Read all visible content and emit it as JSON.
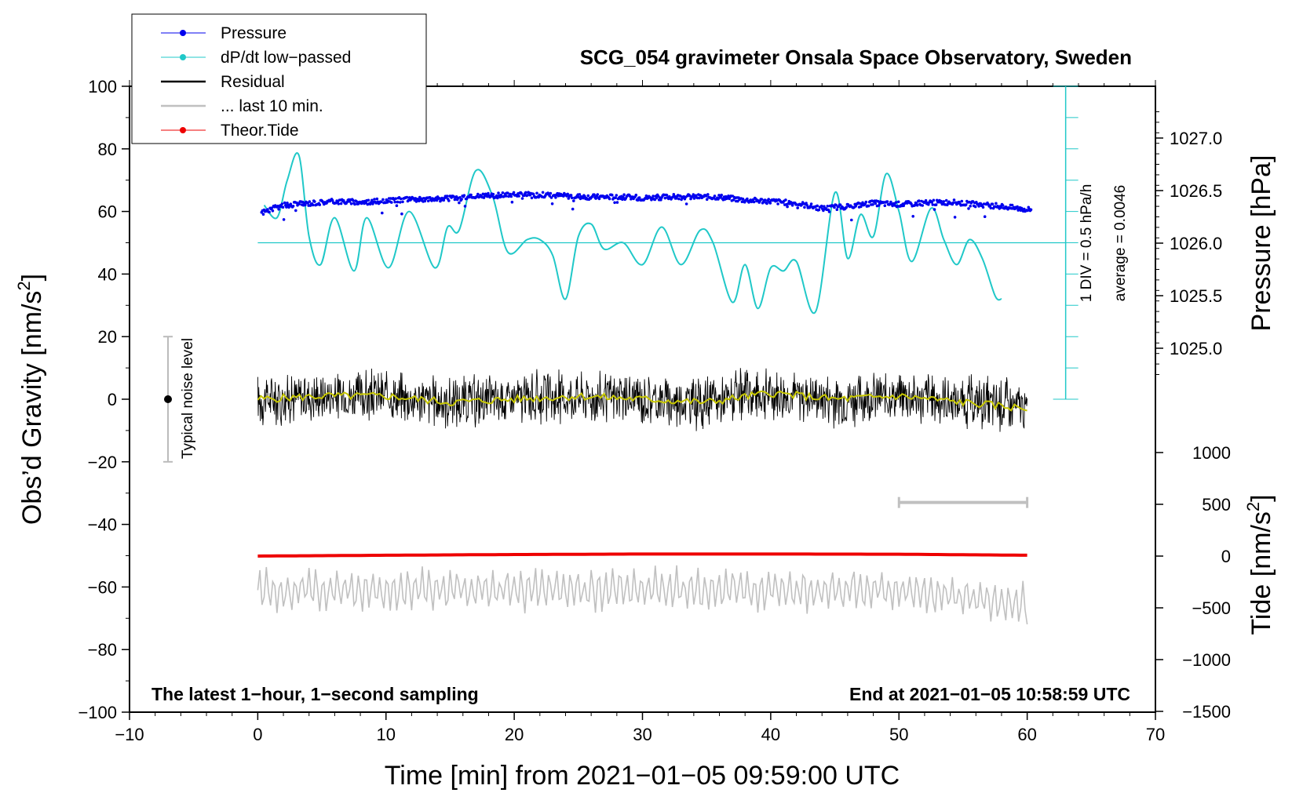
{
  "chart_data": {
    "type": "line",
    "title": "SCG_054 gravimeter Onsala Space Observatory, Sweden",
    "xlabel": "Time [min] from 2021−01−05 09:59:00 UTC",
    "ylabel_left": "Obs’d Gravity [nm/s",
    "ylabel_left_sup": "2",
    "ylabel_left_close": "]",
    "ylabel_right_top": "Pressure [hPa]",
    "ylabel_right_bottom": "Tide [nm/s",
    "ylabel_right_bottom_sup": "2",
    "ylabel_right_bottom_close": "]",
    "xlim": [
      -10,
      70
    ],
    "ylim": [
      -100,
      100
    ],
    "x_ticks": [
      "−10",
      "0",
      "10",
      "20",
      "30",
      "40",
      "50",
      "60",
      "70"
    ],
    "y_ticks": [
      "100",
      "80",
      "60",
      "40",
      "20",
      "0",
      "−20",
      "−40",
      "−60",
      "−80",
      "−100"
    ],
    "pressure_ticks": [
      "1027.0",
      "1026.5",
      "1026.0",
      "1025.5",
      "1025.0"
    ],
    "pressure_tick_values": [
      1027.0,
      1026.5,
      1026.0,
      1025.5,
      1025.0
    ],
    "tide_ticks": [
      "1000",
      "500",
      "0",
      "−500",
      "−1000",
      "−1500"
    ],
    "tide_tick_values": [
      1000,
      500,
      0,
      -500,
      -1000,
      -1500
    ],
    "legend": [
      {
        "label": "Pressure",
        "color": "#0000ee",
        "marker": true
      },
      {
        "label": "dP/dt low−passed",
        "color": "#20c8c8",
        "marker": true
      },
      {
        "label": "Residual",
        "color": "#000000",
        "marker": false
      },
      {
        "label": "... last 10 min.",
        "color": "#c0c0c0",
        "marker": false
      },
      {
        "label": "Theor.Tide",
        "color": "#ee0000",
        "marker": true
      }
    ],
    "note_left": "The latest 1−hour, 1−second sampling",
    "note_right": "End at 2021−01−05 10:58:59 UTC",
    "noise_label": "Typical noise level",
    "noise_bar": {
      "x": -7,
      "center": 0,
      "half_range": 20
    },
    "dpdt_scale_label": "1 DIV = 0.5 hPa/h",
    "dpdt_average_label": "average = 0.0046",
    "dpdt_scale_axis": {
      "x": 63,
      "y_range": [
        0,
        100
      ],
      "baseline": 50
    },
    "last10_range": [
      50,
      60
    ],
    "last10_level": -33,
    "series": [
      {
        "name": "Pressure",
        "unit": "hPa",
        "x": [
          0,
          2,
          4,
          6,
          8,
          10,
          12,
          14,
          16,
          18,
          20,
          22,
          24,
          26,
          28,
          30,
          32,
          34,
          36,
          38,
          40,
          42,
          44,
          46,
          48,
          50,
          52,
          54,
          56,
          58,
          60
        ],
        "values": [
          1026.28,
          1026.36,
          1026.38,
          1026.4,
          1026.39,
          1026.4,
          1026.42,
          1026.42,
          1026.43,
          1026.45,
          1026.46,
          1026.46,
          1026.45,
          1026.44,
          1026.44,
          1026.43,
          1026.44,
          1026.44,
          1026.44,
          1026.41,
          1026.4,
          1026.38,
          1026.33,
          1026.35,
          1026.38,
          1026.37,
          1026.38,
          1026.39,
          1026.37,
          1026.35,
          1026.32
        ]
      },
      {
        "name": "dP/dt low−passed",
        "unit": "nm/s2 plot units",
        "x": [
          0.5,
          1.5,
          2.3,
          3.2,
          4.0,
          4.9,
          6.0,
          7.5,
          8.5,
          10.2,
          11.8,
          13.8,
          14.8,
          15.7,
          17.0,
          18.3,
          19.5,
          21.0,
          22.0,
          23.0,
          24.0,
          25.0,
          26.0,
          27.0,
          28.5,
          30.0,
          31.5,
          33.0,
          34.5,
          35.5,
          37.0,
          38.0,
          39.0,
          40.0,
          41.0,
          42.0,
          43.5,
          45.0,
          46.0,
          47.0,
          48.0,
          49.0,
          50.0,
          51.0,
          52.5,
          53.5,
          54.5,
          55.5,
          56.5,
          57.5,
          58.0
        ],
        "values": [
          62,
          58,
          70,
          78,
          52,
          43,
          58,
          41,
          58,
          42,
          60,
          42,
          55,
          54,
          73,
          65,
          47,
          51,
          51,
          46,
          32,
          52,
          56,
          48,
          50,
          43,
          55,
          43,
          54,
          50,
          31,
          43,
          29,
          42,
          41,
          44,
          28,
          66,
          45,
          59,
          52,
          72,
          60,
          44,
          61,
          51,
          43,
          51,
          45,
          33,
          32
        ]
      },
      {
        "name": "Residual",
        "unit": "nm/s2",
        "x": [
          0,
          5,
          10,
          15,
          20,
          25,
          30,
          35,
          40,
          45,
          50,
          55,
          60
        ],
        "values": [
          0,
          1,
          1,
          -1,
          0,
          1,
          0,
          -1,
          2,
          0,
          1,
          -1,
          -3
        ],
        "amplitude": 8
      },
      {
        "name": "... last 10 min.",
        "unit": "nm/s2",
        "x": [
          0,
          10,
          20,
          30,
          40,
          50,
          60
        ],
        "values": [
          -61,
          -61,
          -61,
          -61,
          -61,
          -61,
          -66
        ],
        "amplitude": 8
      },
      {
        "name": "Theor.Tide",
        "unit": "nm/s2 tide axis",
        "x": [
          0,
          10,
          20,
          30,
          40,
          50,
          60
        ],
        "values": [
          0,
          8,
          15,
          20,
          20,
          18,
          8
        ]
      }
    ]
  },
  "colors": {
    "pressure": "#0000ee",
    "dpdt": "#20c8c8",
    "residual": "#000000",
    "residual_smooth": "#c8c800",
    "last10": "#c0c0c0",
    "tide": "#ee0000",
    "axis": "#000000"
  }
}
